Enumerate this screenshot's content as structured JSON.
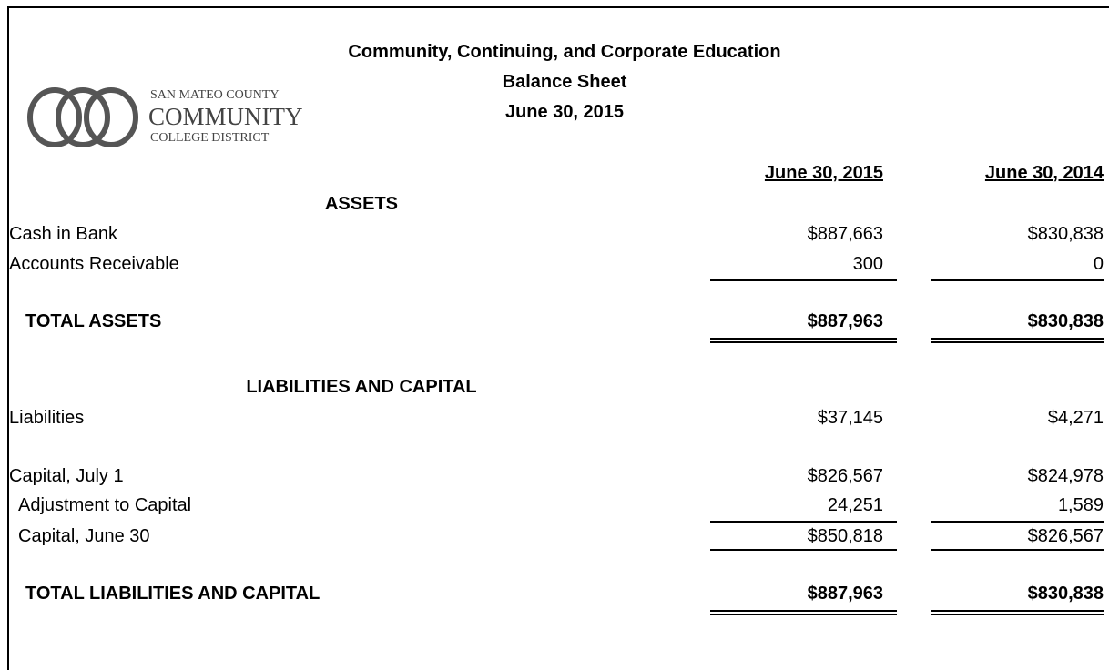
{
  "header": {
    "title": "Community, Continuing, and Corporate Education",
    "subtitle": "Balance Sheet",
    "date": "June 30, 2015"
  },
  "logo": {
    "line1": "SAN MATEO COUNTY",
    "line2": "COMMUNITY",
    "line3": "COLLEGE DISTRICT"
  },
  "columns": [
    "June 30, 2015",
    "June 30, 2014"
  ],
  "assets": {
    "heading": "ASSETS",
    "rows": [
      {
        "label": "Cash in Bank",
        "values": [
          "$887,663",
          "$830,838"
        ]
      },
      {
        "label": "Accounts Receivable",
        "values": [
          "300",
          "0"
        ]
      }
    ],
    "total": {
      "label": "TOTAL ASSETS",
      "values": [
        "$887,963",
        "$830,838"
      ]
    }
  },
  "liabilities": {
    "heading": "LIABILITIES AND CAPITAL",
    "rows": [
      {
        "label": "Liabilities",
        "values": [
          "$37,145",
          "$4,271"
        ]
      },
      {
        "label": "Capital, July 1",
        "values": [
          "$826,567",
          "$824,978"
        ]
      },
      {
        "label": "Adjustment to Capital",
        "values": [
          "24,251",
          "1,589"
        ]
      },
      {
        "label": "Capital, June 30",
        "values": [
          "$850,818",
          "$826,567"
        ]
      }
    ],
    "total": {
      "label": "TOTAL LIABILITIES AND CAPITAL",
      "values": [
        "$887,963",
        "$830,838"
      ]
    }
  }
}
